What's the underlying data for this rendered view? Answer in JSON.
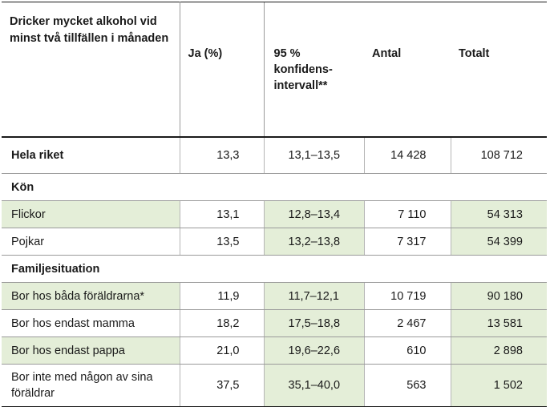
{
  "headers": {
    "title": "Dricker mycket alkohol vid minst två tillfällen i månaden",
    "ja": "Ja (%)",
    "ci": "95 % konfidens-intervall**",
    "antal": "Antal",
    "totalt": "Totalt"
  },
  "rows": {
    "hela": {
      "label": "Hela riket",
      "ja": "13,3",
      "ci": "13,1–13,5",
      "antal": "14 428",
      "totalt": "108 712"
    },
    "kon": {
      "label": "Kön"
    },
    "flickor": {
      "label": "Flickor",
      "ja": "13,1",
      "ci": "12,8–13,4",
      "antal": "7 110",
      "totalt": "54 313"
    },
    "pojkar": {
      "label": "Pojkar",
      "ja": "13,5",
      "ci": "13,2–13,8",
      "antal": "7 317",
      "totalt": "54 399"
    },
    "familj": {
      "label": "Familjesituation"
    },
    "bada": {
      "label": "Bor hos båda föräldrarna*",
      "ja": "11,9",
      "ci": "11,7–12,1",
      "antal": "10 719",
      "totalt": "90 180"
    },
    "mamma": {
      "label": "Bor hos endast mamma",
      "ja": "18,2",
      "ci": "17,5–18,8",
      "antal": "2 467",
      "totalt": "13 581"
    },
    "pappa": {
      "label": "Bor hos endast pappa",
      "ja": "21,0",
      "ci": "19,6–22,6",
      "antal": "610",
      "totalt": "2 898"
    },
    "inte": {
      "label": "Bor inte med någon av sina föräldrar",
      "ja": "37,5",
      "ci": "35,1–40,0",
      "antal": "563",
      "totalt": "1 502"
    }
  },
  "colors": {
    "highlight": "#e4eed8",
    "rule": "#1a1a1a"
  }
}
